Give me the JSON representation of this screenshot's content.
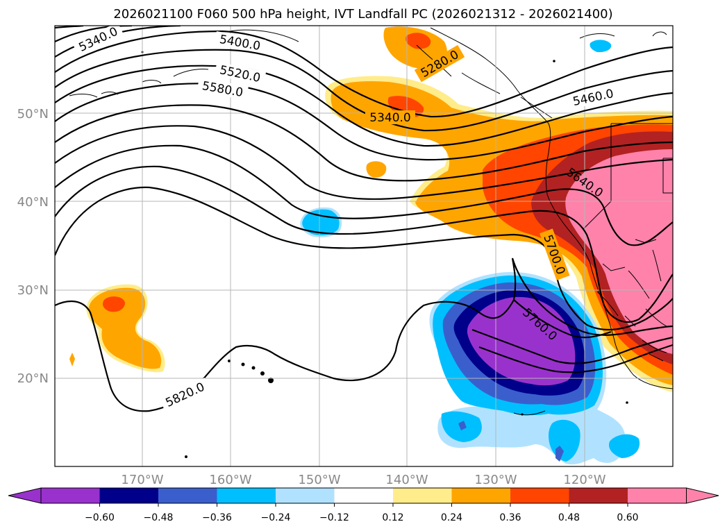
{
  "title": "2026021100 F060 500 hPa height, IVT Landfall PC (2026021312 - 2026021400)",
  "map": {
    "lon_range": [
      -180,
      -110
    ],
    "lat_range": [
      10,
      60
    ],
    "lat_labels": [
      {
        "lat": 50,
        "text": "50°N"
      },
      {
        "lat": 40,
        "text": "40°N"
      },
      {
        "lat": 30,
        "text": "30°N"
      },
      {
        "lat": 20,
        "text": "20°N"
      }
    ],
    "lon_labels": [
      {
        "lon": -170,
        "text": "170°W"
      },
      {
        "lon": -160,
        "text": "160°W"
      },
      {
        "lon": -150,
        "text": "150°W"
      },
      {
        "lon": -140,
        "text": "140°W"
      },
      {
        "lon": -130,
        "text": "130°W"
      },
      {
        "lon": -120,
        "text": "120°W"
      }
    ]
  },
  "contour_labels": [
    "5340.0",
    "5400.0",
    "5520.0",
    "5580.0",
    "5280.0",
    "5340.0",
    "5460.0",
    "5640.0",
    "5700.0",
    "5760.0",
    "5820.0"
  ],
  "colorbar": {
    "colors": [
      "#9932CC",
      "#00008B",
      "#3A5FCD",
      "#00BFFF",
      "#B0E2FF",
      "#FFFFFF",
      "#FFEC8B",
      "#FFA500",
      "#FF4500",
      "#B22222",
      "#FF82AB"
    ],
    "ticks": [
      "−0.60",
      "−0.48",
      "−0.36",
      "−0.24",
      "−0.12",
      "0.12",
      "0.24",
      "0.36",
      "0.48",
      "0.60"
    ]
  }
}
